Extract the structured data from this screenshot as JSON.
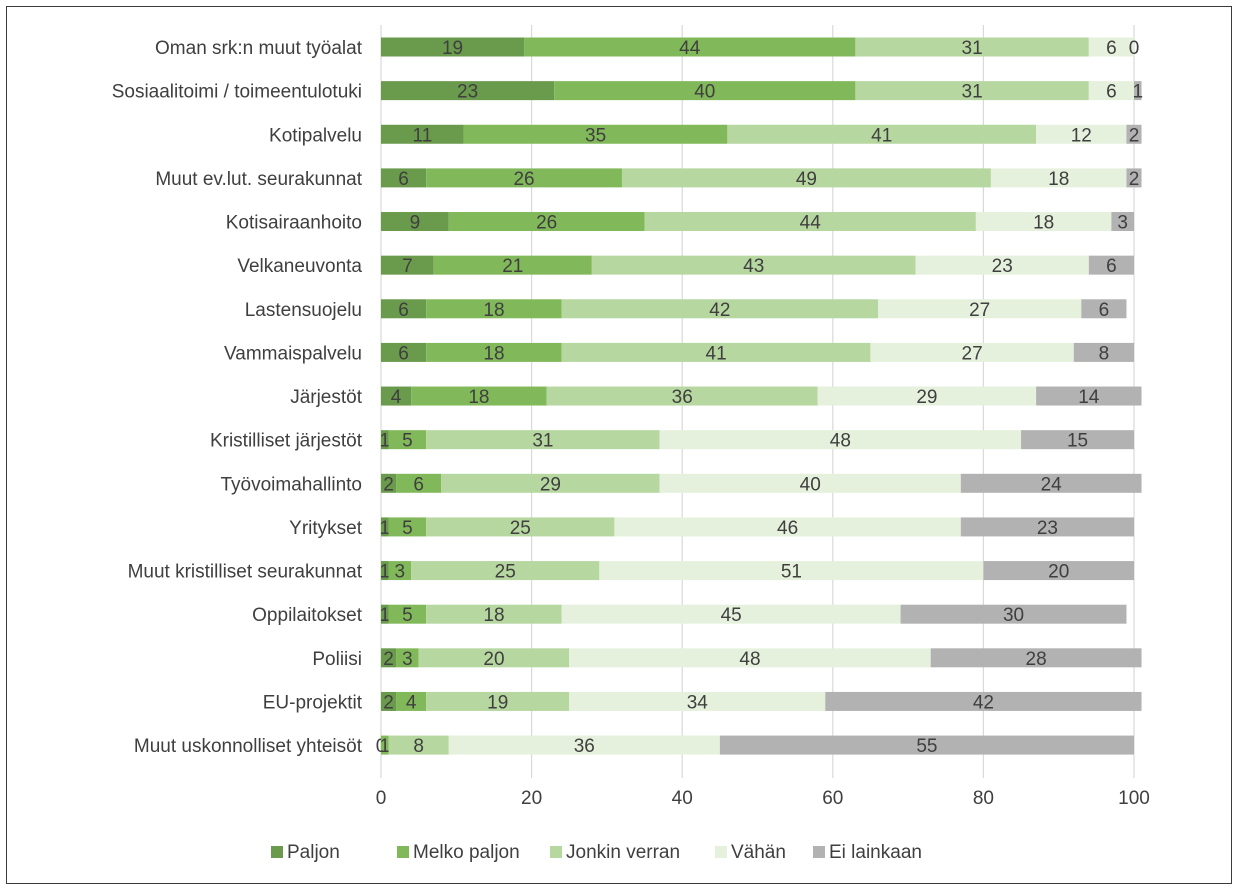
{
  "chart_data": {
    "type": "bar",
    "orientation": "horizontal",
    "stacked": true,
    "categories": [
      "Oman srk:n muut työalat",
      "Sosiaalitoimi / toimeentulotuki",
      "Kotipalvelu",
      "Muut ev.lut. seurakunnat",
      "Kotisairaanhoito",
      "Velkaneuvonta",
      "Lastensuojelu",
      "Vammaispalvelu",
      "Järjestöt",
      "Kristilliset järjestöt",
      "Työvoimahallinto",
      "Yritykset",
      "Muut kristilliset seurakunnat",
      "Oppilaitokset",
      "Poliisi",
      "EU-projektit",
      "Muut uskonnolliset yhteisöt"
    ],
    "series": [
      {
        "name": "Paljon",
        "color": "#6a9a4c",
        "values": [
          19,
          23,
          11,
          6,
          9,
          7,
          6,
          6,
          4,
          1,
          2,
          1,
          1,
          1,
          2,
          2,
          0
        ]
      },
      {
        "name": "Melko paljon",
        "color": "#81b95a",
        "values": [
          44,
          40,
          35,
          26,
          26,
          21,
          18,
          18,
          18,
          5,
          6,
          5,
          3,
          5,
          3,
          4,
          1
        ]
      },
      {
        "name": "Jonkin verran",
        "color": "#b6d7a0",
        "values": [
          31,
          31,
          41,
          49,
          44,
          43,
          42,
          41,
          36,
          31,
          29,
          25,
          25,
          18,
          20,
          19,
          8
        ]
      },
      {
        "name": "Vähän",
        "color": "#e6f1dd",
        "values": [
          6,
          6,
          12,
          18,
          18,
          23,
          27,
          27,
          29,
          48,
          40,
          46,
          51,
          45,
          48,
          34,
          36
        ]
      },
      {
        "name": "Ei lainkaan",
        "color": "#b2b2b2",
        "values": [
          0,
          1,
          2,
          2,
          3,
          6,
          6,
          8,
          14,
          15,
          24,
          23,
          20,
          30,
          28,
          42,
          55
        ]
      }
    ],
    "xlim": [
      0,
      100
    ],
    "xticks": [
      "0",
      "20",
      "40",
      "60",
      "80",
      "100"
    ],
    "grid": "vertical",
    "legend_position": "bottom",
    "title": "",
    "xlabel": "",
    "ylabel": ""
  }
}
